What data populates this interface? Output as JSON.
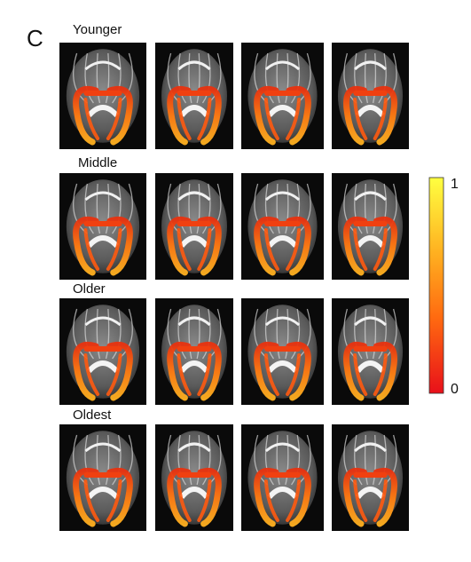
{
  "panel_label": "C",
  "rows": [
    {
      "label": "Younger"
    },
    {
      "label": "Middle"
    },
    {
      "label": "Older"
    },
    {
      "label": "Oldest"
    }
  ],
  "colorbar": {
    "max": 1,
    "min": 0
  }
}
